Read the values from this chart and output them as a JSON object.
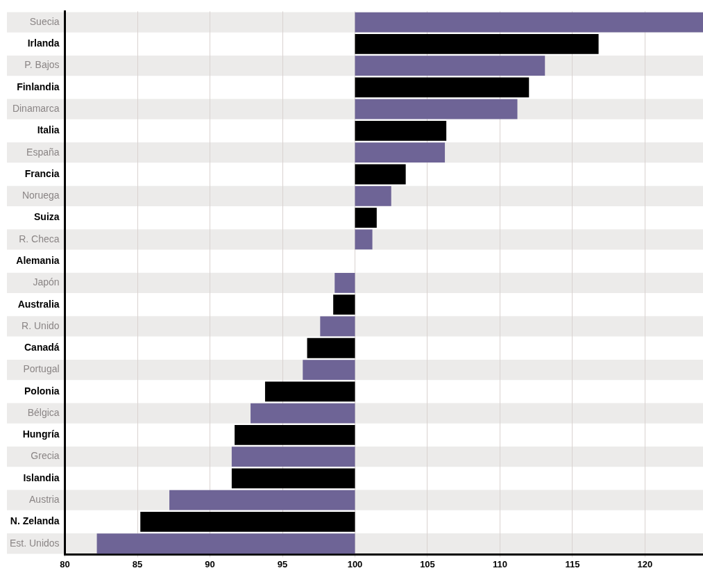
{
  "chart_data": {
    "type": "bar",
    "orientation": "horizontal",
    "categories": [
      "Suecia",
      "Irlanda",
      "P. Bajos",
      "Finlandia",
      "Dinamarca",
      "Italia",
      "España",
      "Francia",
      "Noruega",
      "Suiza",
      "R. Checa",
      "Alemania",
      "Japón",
      "Australia",
      "R. Unido",
      "Canadá",
      "Portugal",
      "Polonia",
      "Bélgica",
      "Hungría",
      "Grecia",
      "Islandia",
      "Austria",
      "N. Zelanda",
      "Est. Unidos"
    ],
    "base": [
      100,
      100,
      100,
      100,
      100,
      100,
      100,
      100,
      100,
      100,
      100,
      null,
      100,
      100,
      100,
      100,
      100,
      100,
      100,
      100,
      100,
      100,
      100,
      100,
      100
    ],
    "values": [
      24,
      16.8,
      13.1,
      12,
      11.2,
      6.3,
      6.2,
      3.5,
      2.5,
      1.5,
      1.2,
      0,
      -1.4,
      -1.5,
      -2.4,
      -3.3,
      -3.6,
      -6.2,
      -7.2,
      -8.3,
      -8.5,
      -8.5,
      -12.8,
      -14.8,
      -17.8
    ],
    "colors": [
      "#6e6496",
      "#000000",
      "#6e6496",
      "#000000",
      "#6e6496",
      "#000000",
      "#6e6496",
      "#000000",
      "#6e6496",
      "#000000",
      "#6e6496",
      "#000000",
      "#6e6496",
      "#000000",
      "#6e6496",
      "#000000",
      "#6e6496",
      "#000000",
      "#6e6496",
      "#000000",
      "#6e6496",
      "#000000",
      "#6e6496",
      "#000000",
      "#6e6496"
    ],
    "xlim": [
      80,
      124
    ],
    "xticks": [
      80,
      85,
      90,
      95,
      100,
      105,
      110,
      115,
      120
    ],
    "grid": "x"
  }
}
